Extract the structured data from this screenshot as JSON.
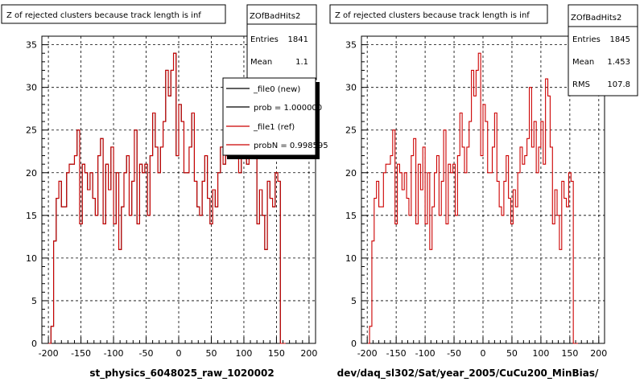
{
  "chart_data": [
    {
      "type": "histogram",
      "title": "Z of rejected clusters  because track length is inf",
      "xlabel": "st_physics_6048025_raw_1020002",
      "ylabel": "",
      "xlim": [
        -210,
        210
      ],
      "ylim": [
        0,
        36
      ],
      "x_ticks": [
        "-200",
        "-150",
        "-100",
        "-50",
        "0",
        "50",
        "100",
        "150",
        "200"
      ],
      "y_ticks": [
        "0",
        "5",
        "10",
        "15",
        "20",
        "25",
        "30",
        "35"
      ],
      "grid": true,
      "bin_start": -200,
      "bin_width": 4,
      "series": [
        {
          "name": "_file0 (new)",
          "color": "#000000",
          "values": [
            0,
            2,
            12,
            17,
            19,
            16,
            16,
            20,
            21,
            21,
            22,
            25,
            14,
            21,
            20,
            18,
            20,
            17,
            15,
            22,
            24,
            14,
            21,
            18,
            23,
            14,
            20,
            11,
            16,
            20,
            22,
            15,
            19,
            25,
            14,
            21,
            20,
            21,
            15,
            22,
            27,
            23,
            20,
            23,
            26,
            32,
            29,
            32,
            34,
            22,
            28,
            26,
            20,
            20,
            23,
            27,
            19,
            16,
            15,
            19,
            22,
            17,
            14,
            18,
            16,
            20,
            23,
            21,
            22,
            24,
            30,
            23,
            26,
            20,
            23,
            26,
            21,
            27,
            28,
            23,
            14,
            18,
            15,
            11,
            19,
            17,
            16,
            20,
            19,
            0,
            0
          ]
        },
        {
          "name": "_file1 (ref)",
          "color": "#cc0000",
          "values": [
            0,
            2,
            12,
            17,
            19,
            16,
            16,
            20,
            21,
            21,
            22,
            25,
            14,
            21,
            20,
            18,
            20,
            17,
            15,
            22,
            24,
            14,
            21,
            18,
            23,
            14,
            20,
            11,
            16,
            20,
            22,
            15,
            19,
            25,
            14,
            21,
            20,
            21,
            15,
            22,
            27,
            23,
            20,
            23,
            26,
            32,
            29,
            32,
            34,
            22,
            28,
            26,
            20,
            20,
            23,
            27,
            19,
            16,
            15,
            19,
            22,
            17,
            14,
            18,
            16,
            20,
            23,
            21,
            22,
            24,
            30,
            23,
            26,
            20,
            23,
            26,
            21,
            27,
            28,
            23,
            14,
            18,
            15,
            11,
            19,
            17,
            16,
            20,
            19,
            0,
            0
          ]
        }
      ],
      "stats": {
        "name": "ZOfBadHits2",
        "entries_label": "Entries",
        "entries": "1841",
        "mean_label": "Mean",
        "mean": "1.1"
      },
      "legend": {
        "placement": "top-right",
        "entries": [
          {
            "label": "_file0 (new)",
            "color": "#000000"
          },
          {
            "label": "prob = 1.000000",
            "color": "#000000"
          },
          {
            "label": "_file1 (ref)",
            "color": "#cc0000"
          },
          {
            "label": "probN = 0.998595",
            "color": "#cc0000"
          }
        ]
      }
    },
    {
      "type": "histogram",
      "title": "Z of rejected clusters  because track length is inf",
      "xlabel": "dev/daq_sl302/Sat/year_2005/CuCu200_MinBias/",
      "ylabel": "",
      "xlim": [
        -210,
        210
      ],
      "ylim": [
        0,
        36
      ],
      "x_ticks": [
        "-200",
        "-150",
        "-100",
        "-50",
        "0",
        "50",
        "100",
        "150",
        "200"
      ],
      "y_ticks": [
        "0",
        "5",
        "10",
        "15",
        "20",
        "25",
        "30",
        "35"
      ],
      "grid": true,
      "bin_start": -200,
      "bin_width": 4,
      "series": [
        {
          "name": "",
          "color": "#cc0000",
          "values": [
            0,
            2,
            12,
            17,
            19,
            16,
            16,
            20,
            21,
            21,
            22,
            25,
            14,
            21,
            20,
            18,
            20,
            17,
            15,
            22,
            24,
            14,
            21,
            18,
            23,
            14,
            20,
            11,
            16,
            20,
            22,
            15,
            19,
            25,
            14,
            21,
            20,
            21,
            15,
            22,
            27,
            23,
            20,
            23,
            26,
            32,
            29,
            32,
            34,
            22,
            28,
            26,
            20,
            20,
            23,
            27,
            19,
            16,
            15,
            19,
            22,
            17,
            14,
            18,
            16,
            20,
            23,
            21,
            22,
            24,
            30,
            23,
            26,
            20,
            23,
            26,
            21,
            31,
            29,
            23,
            14,
            18,
            15,
            11,
            19,
            17,
            16,
            20,
            19,
            0,
            0
          ]
        }
      ],
      "stats": {
        "name": "ZOfBadHits2",
        "entries_label": "Entries",
        "entries": "1845",
        "mean_label": "Mean",
        "mean": "1.453",
        "rms_label": "RMS",
        "rms": "107.8"
      }
    }
  ]
}
